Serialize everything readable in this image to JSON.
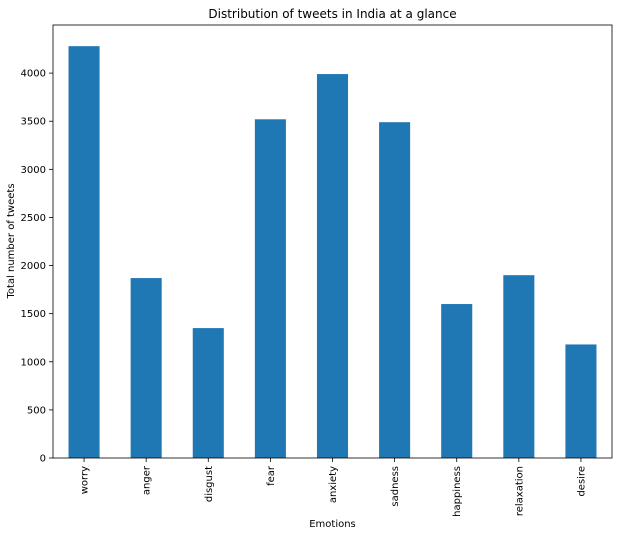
{
  "chart_data": {
    "type": "bar",
    "title": "Distribution of tweets in India at a glance",
    "xlabel": "Emotions",
    "ylabel": "Total number of tweets",
    "categories": [
      "worry",
      "anger",
      "disgust",
      "fear",
      "anxiety",
      "sadness",
      "happiness",
      "relaxation",
      "desire"
    ],
    "values": [
      4280,
      1870,
      1350,
      3520,
      3990,
      3490,
      1600,
      1900,
      1180
    ],
    "ylim": [
      0,
      4500
    ],
    "yticks": [
      0,
      500,
      1000,
      1500,
      2000,
      2500,
      3000,
      3500,
      4000
    ],
    "grid": false,
    "bar_color": "#1f77b4"
  }
}
